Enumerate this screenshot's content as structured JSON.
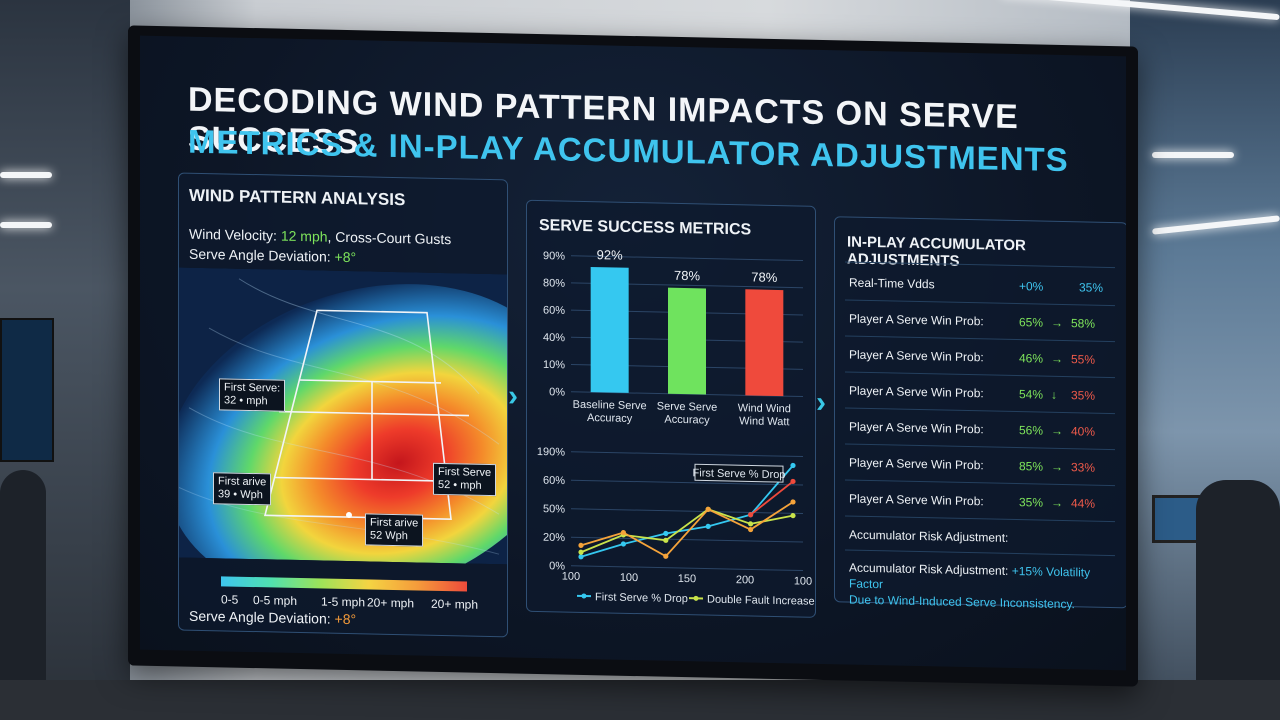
{
  "header": {
    "title_line1": "DECODING WIND PATTERN IMPACTS ON SERVE SUCCESS",
    "title_line2": "METRICS & IN-PLAY ACCUMULATOR ADJUSTMENTS"
  },
  "wind_panel": {
    "title": "WIND PATTERN ANALYSIS",
    "velocity_label": "Wind Velocity:",
    "velocity_value": "12 mph",
    "velocity_suffix": ", Cross-Court Gusts",
    "deviation_label": "Serve Angle Deviation:",
    "deviation_value": "+8°",
    "callouts": [
      {
        "line1": "First Serve:",
        "line2": "32 • mph"
      },
      {
        "line1": "First Serve",
        "line2": "52 • mph"
      },
      {
        "line1": "First arive",
        "line2": "39 • Wph"
      },
      {
        "line1": "First arive",
        "line2": "52 Wph"
      }
    ],
    "legend": [
      "0-5",
      "0-5 mph",
      "1-5 mph",
      "20+ mph",
      "20+ mph"
    ],
    "footer_label": "Serve Angle Deviation:",
    "footer_value": "+8°"
  },
  "serve_panel": {
    "title": "SERVE SUCCESS METRICS"
  },
  "chart_data": [
    {
      "type": "bar",
      "categories": [
        "Baseline Serve Accuracy",
        "Serve Serve Accuracy",
        "Wind Wind Wind Watt"
      ],
      "category_lines": [
        [
          "Baseline Serve",
          "Accuracy"
        ],
        [
          "Serve Serve",
          "Accuracy"
        ],
        [
          "Wind Wind",
          "Wind Watt"
        ]
      ],
      "values": [
        92,
        78,
        78
      ],
      "data_labels": [
        "92%",
        "78%",
        "78%"
      ],
      "colors": [
        "#35c8f0",
        "#6fe35e",
        "#ef4a3c"
      ],
      "yticks": [
        "90%",
        "80%",
        "60%",
        "40%",
        "10%",
        "0%"
      ],
      "ylim": [
        0,
        100
      ],
      "grid": true
    },
    {
      "type": "line",
      "xticks": [
        "100",
        "100",
        "150",
        "200",
        "100"
      ],
      "yticks": [
        "190%",
        "60%",
        "50%",
        "20%",
        "0%"
      ],
      "annotation": "First Serve % Drop",
      "series": [
        {
          "name": "First Serve % Drop",
          "color": "#35c8f0",
          "values": [
            8,
            20,
            30,
            37,
            48,
            92
          ]
        },
        {
          "name": "Double Fault Increase",
          "color": "#c9e34a",
          "values": [
            12,
            28,
            24,
            52,
            40,
            48
          ]
        },
        {
          "name": "",
          "color": "#f5a33a",
          "values": [
            18,
            30,
            10,
            52,
            35,
            60
          ]
        },
        {
          "name": "",
          "color": "#ef4a3c",
          "values": [
            48,
            78
          ]
        }
      ],
      "grid": true
    }
  ],
  "accumulator_panel": {
    "title": "IN-PLAY ACCUMULATOR ADJUSTMENTS",
    "odds_label": "Real-Time Vdds",
    "odds_v1": "+0%",
    "odds_v2": "35%",
    "rows": [
      {
        "label": "Player A Serve Win Prob:",
        "from": "65%",
        "arrow": "→",
        "to": "58%",
        "dir": "up"
      },
      {
        "label": "Player A Serve Win Prob:",
        "from": "46%",
        "arrow": "→",
        "to": "55%",
        "dir": "dn"
      },
      {
        "label": "Player A Serve Win Prob:",
        "from": "54%",
        "arrow": "↓",
        "to": "35%",
        "dir": "dn"
      },
      {
        "label": "Player A Serve Win Prob:",
        "from": "56%",
        "arrow": "→",
        "to": "40%",
        "dir": "dn"
      },
      {
        "label": "Player A Serve Win Prob:",
        "from": "85%",
        "arrow": "→",
        "to": "33%",
        "dir": "dn"
      },
      {
        "label": "Player A Serve Win Prob:",
        "from": "35%",
        "arrow": "→",
        "to": "44%",
        "dir": "dn"
      }
    ],
    "risk_label": "Accumulator Risk Adjustment:",
    "risk_text_label": "Accumulator Risk Adjustment:",
    "risk_text_value": "+15% Volatility Factor",
    "risk_text_line2": "Due to Wind-Induced Serve Inconsistency."
  }
}
